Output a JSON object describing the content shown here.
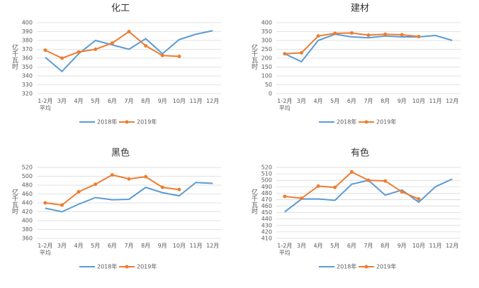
{
  "chart_data": [
    {
      "type": "line",
      "title": "化工",
      "ylabel": "亿千瓦时",
      "categories": [
        "1-2月平均",
        "3月",
        "4月",
        "5月",
        "6月",
        "7月",
        "8月",
        "9月",
        "10月",
        "11月",
        "12月"
      ],
      "series": [
        {
          "name": "2018年",
          "color": "#5b9bd5",
          "values": [
            361,
            345,
            365,
            380,
            375,
            370,
            382,
            365,
            381,
            387,
            391
          ]
        },
        {
          "name": "2019年",
          "color": "#ed7d31",
          "marker": true,
          "values": [
            369,
            360,
            367,
            370,
            377,
            390,
            374,
            363,
            362,
            null,
            null
          ]
        }
      ],
      "ylim": [
        320,
        400
      ],
      "yticks": [
        320,
        330,
        340,
        350,
        360,
        370,
        380,
        390,
        400
      ],
      "grid": true
    },
    {
      "type": "line",
      "title": "建材",
      "ylabel": "亿千瓦时",
      "categories": [
        "1-2月平均",
        "3月",
        "4月",
        "5月",
        "6月",
        "7月",
        "8月",
        "9月",
        "10月",
        "11月",
        "12月"
      ],
      "series": [
        {
          "name": "2018年",
          "color": "#5b9bd5",
          "values": [
            225,
            180,
            300,
            335,
            320,
            315,
            325,
            320,
            320,
            328,
            300
          ]
        },
        {
          "name": "2019年",
          "color": "#ed7d31",
          "marker": true,
          "values": [
            225,
            230,
            325,
            340,
            342,
            330,
            335,
            332,
            322,
            null,
            null
          ]
        }
      ],
      "ylim": [
        0,
        400
      ],
      "yticks": [
        0,
        50,
        100,
        150,
        200,
        250,
        300,
        350,
        400
      ],
      "grid": true
    },
    {
      "type": "line",
      "title": "黑色",
      "ylabel": "亿千瓦时",
      "categories": [
        "1-2月平均",
        "3月",
        "4月",
        "5月",
        "6月",
        "7月",
        "8月",
        "9月",
        "10月",
        "11月",
        "12月"
      ],
      "series": [
        {
          "name": "2018年",
          "color": "#5b9bd5",
          "values": [
            428,
            420,
            437,
            452,
            447,
            448,
            475,
            463,
            456,
            486,
            484
          ]
        },
        {
          "name": "2019年",
          "color": "#ed7d31",
          "marker": true,
          "values": [
            440,
            435,
            465,
            482,
            503,
            494,
            499,
            475,
            470,
            null,
            null
          ]
        }
      ],
      "ylim": [
        360,
        520
      ],
      "yticks": [
        360,
        380,
        400,
        420,
        440,
        460,
        480,
        500,
        520
      ],
      "grid": true
    },
    {
      "type": "line",
      "title": "有色",
      "ylabel": "亿千瓦时",
      "categories": [
        "1-2月平均",
        "3月",
        "4月",
        "5月",
        "6月",
        "7月",
        "8月",
        "9月",
        "10月",
        "11月",
        "12月"
      ],
      "series": [
        {
          "name": "2018年",
          "color": "#5b9bd5",
          "values": [
            451,
            471,
            471,
            469,
            494,
            500,
            477,
            485,
            466,
            490,
            502
          ]
        },
        {
          "name": "2019年",
          "color": "#ed7d31",
          "marker": true,
          "values": [
            475,
            472,
            491,
            489,
            513,
            500,
            499,
            482,
            471,
            null,
            null
          ]
        }
      ],
      "ylim": [
        410,
        520
      ],
      "yticks": [
        410,
        420,
        430,
        440,
        450,
        460,
        470,
        480,
        490,
        500,
        510,
        520
      ],
      "grid": true
    }
  ]
}
